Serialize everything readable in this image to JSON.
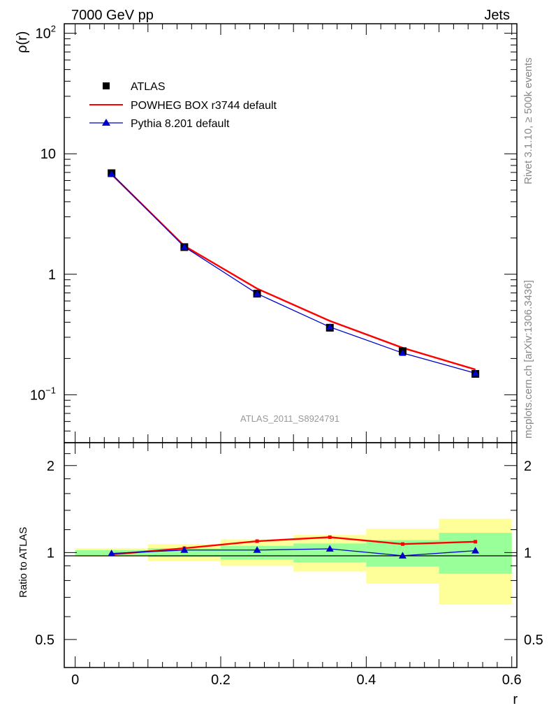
{
  "header": {
    "left": "7000 GeV pp",
    "right": "Jets",
    "side_top": "Rivet 3.1.10, ≥ 500k events",
    "side_bottom": "mcplots.cern.ch [arXiv:1306.3436]",
    "analysis": "ATLAS_2011_S8924791"
  },
  "colors": {
    "data": "#000000",
    "powheg": "#ff0000",
    "pythia": "#0000cc",
    "band_inner": "#99ff99",
    "band_outer": "#ffff99"
  },
  "chart_data": [
    {
      "type": "line",
      "panel": "main",
      "yscale": "log",
      "ylabel": "ρ(r)",
      "xlim": [
        -0.015,
        0.607
      ],
      "ylim": [
        0.04,
        120
      ],
      "y_ticks": [
        {
          "value": 100,
          "base": "10",
          "exp": "2"
        },
        {
          "value": 10,
          "base": "10",
          "exp": ""
        },
        {
          "value": 1,
          "base": "1",
          "exp": ""
        },
        {
          "value": 0.1,
          "base": "10",
          "exp": "−1"
        }
      ],
      "x": [
        0.05,
        0.15,
        0.25,
        0.35,
        0.45,
        0.55
      ],
      "legend": [
        "ATLAS",
        "POWHEG BOX r3744 default",
        "Pythia 8.201 default"
      ],
      "series": [
        {
          "name": "ATLAS",
          "values": [
            6.9,
            1.68,
            0.69,
            0.36,
            0.23,
            0.149
          ]
        },
        {
          "name": "POWHEG BOX r3744 default",
          "values": [
            6.75,
            1.72,
            0.76,
            0.41,
            0.245,
            0.162
          ]
        },
        {
          "name": "Pythia 8.201 default",
          "values": [
            6.82,
            1.69,
            0.69,
            0.365,
            0.222,
            0.151
          ]
        }
      ]
    },
    {
      "type": "line",
      "panel": "ratio",
      "yscale": "log",
      "ylabel": "Ratio to ATLAS",
      "xlabel": "r",
      "xlim": [
        -0.015,
        0.607
      ],
      "ylim": [
        0.4,
        2.4
      ],
      "x_ticks": [
        "0",
        "0.2",
        "0.4",
        "0.6"
      ],
      "y_ticks": [
        "0.5",
        "1",
        "2"
      ],
      "bins": [
        [
          0.0,
          0.1
        ],
        [
          0.1,
          0.2
        ],
        [
          0.2,
          0.3
        ],
        [
          0.3,
          0.4
        ],
        [
          0.4,
          0.5
        ],
        [
          0.5,
          0.6
        ]
      ],
      "band_inner": [
        [
          0.98,
          1.02
        ],
        [
          0.965,
          1.035
        ],
        [
          0.945,
          1.055
        ],
        [
          0.925,
          1.075
        ],
        [
          0.895,
          1.105
        ],
        [
          0.845,
          1.17
        ]
      ],
      "band_outer": [
        [
          0.965,
          1.035
        ],
        [
          0.935,
          1.07
        ],
        [
          0.9,
          1.11
        ],
        [
          0.86,
          1.15
        ],
        [
          0.78,
          1.21
        ],
        [
          0.66,
          1.31
        ]
      ],
      "x": [
        0.05,
        0.15,
        0.25,
        0.35,
        0.45,
        0.55
      ],
      "series": [
        {
          "name": "POWHEG BOX r3744 default",
          "values": [
            0.985,
            1.035,
            1.095,
            1.13,
            1.07,
            1.09
          ]
        },
        {
          "name": "Pythia 8.201 default",
          "values": [
            0.993,
            1.02,
            1.02,
            1.03,
            0.975,
            1.015
          ]
        }
      ]
    }
  ]
}
